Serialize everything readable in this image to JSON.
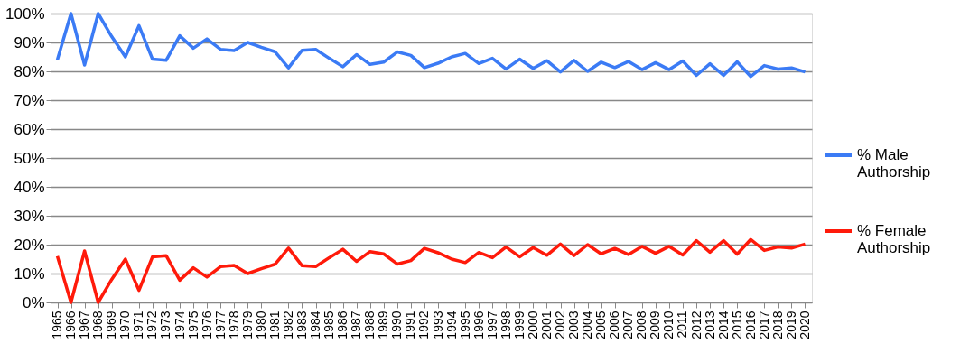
{
  "chart_data": {
    "type": "line",
    "categories": [
      "1965",
      "1966",
      "1967",
      "1968",
      "1969",
      "1970",
      "1971",
      "1972",
      "1973",
      "1974",
      "1975",
      "1976",
      "1977",
      "1978",
      "1979",
      "1980",
      "1981",
      "1982",
      "1983",
      "1984",
      "1985",
      "1986",
      "1987",
      "1988",
      "1989",
      "1990",
      "1991",
      "1992",
      "1993",
      "1994",
      "1995",
      "1996",
      "1997",
      "1998",
      "1999",
      "2000",
      "2001",
      "2002",
      "2003",
      "2004",
      "2005",
      "2006",
      "2007",
      "2008",
      "2009",
      "2010",
      "2011",
      "2012",
      "2013",
      "2014",
      "2015",
      "2016",
      "2017",
      "2018",
      "2019",
      "2020"
    ],
    "series": [
      {
        "name": "% Male Authorship",
        "color": "#3b7bf5",
        "values": [
          84,
          100,
          82.2,
          100,
          92,
          85,
          95.8,
          84.2,
          83.8,
          92.3,
          88,
          91.2,
          87.6,
          87.2,
          90,
          88.3,
          86.8,
          81.2,
          87.3,
          87.6,
          84.5,
          81.6,
          85.8,
          82.4,
          83.2,
          86.7,
          85.5,
          81.3,
          82.8,
          85,
          86.2,
          82.7,
          84.5,
          80.8,
          84.2,
          81,
          83.7,
          79.8,
          83.8,
          80,
          83.2,
          81.3,
          83.4,
          80.6,
          83,
          80.6,
          83.6,
          78.6,
          82.6,
          78.6,
          83.3,
          78.2,
          82,
          80.8,
          81.2,
          79.8
        ]
      },
      {
        "name": "% Female Authorship",
        "color": "#ff1a0a",
        "values": [
          16,
          0,
          17.8,
          0,
          8,
          15,
          4.2,
          15.8,
          16.2,
          7.7,
          12,
          8.8,
          12.4,
          12.8,
          10,
          11.7,
          13.2,
          18.8,
          12.7,
          12.4,
          15.5,
          18.4,
          14.2,
          17.6,
          16.8,
          13.3,
          14.5,
          18.7,
          17.2,
          15,
          13.8,
          17.3,
          15.5,
          19.2,
          15.8,
          19,
          16.3,
          20.2,
          16.2,
          20,
          16.8,
          18.7,
          16.6,
          19.4,
          17,
          19.4,
          16.4,
          21.4,
          17.4,
          21.4,
          16.7,
          21.8,
          18,
          19.2,
          18.8,
          20.2
        ]
      }
    ],
    "ylim": [
      0,
      100
    ],
    "yticks": [
      {
        "value": 0,
        "label": "0%"
      },
      {
        "value": 10,
        "label": "10%"
      },
      {
        "value": 20,
        "label": "20%"
      },
      {
        "value": 30,
        "label": "30%"
      },
      {
        "value": 40,
        "label": "40%"
      },
      {
        "value": 50,
        "label": "50%"
      },
      {
        "value": 60,
        "label": "60%"
      },
      {
        "value": 70,
        "label": "70%"
      },
      {
        "value": 80,
        "label": "80%"
      },
      {
        "value": 90,
        "label": "90%"
      },
      {
        "value": 100,
        "label": "100%"
      }
    ],
    "grid": "y",
    "legend": "right",
    "marker": "none",
    "line_style": "solid"
  }
}
